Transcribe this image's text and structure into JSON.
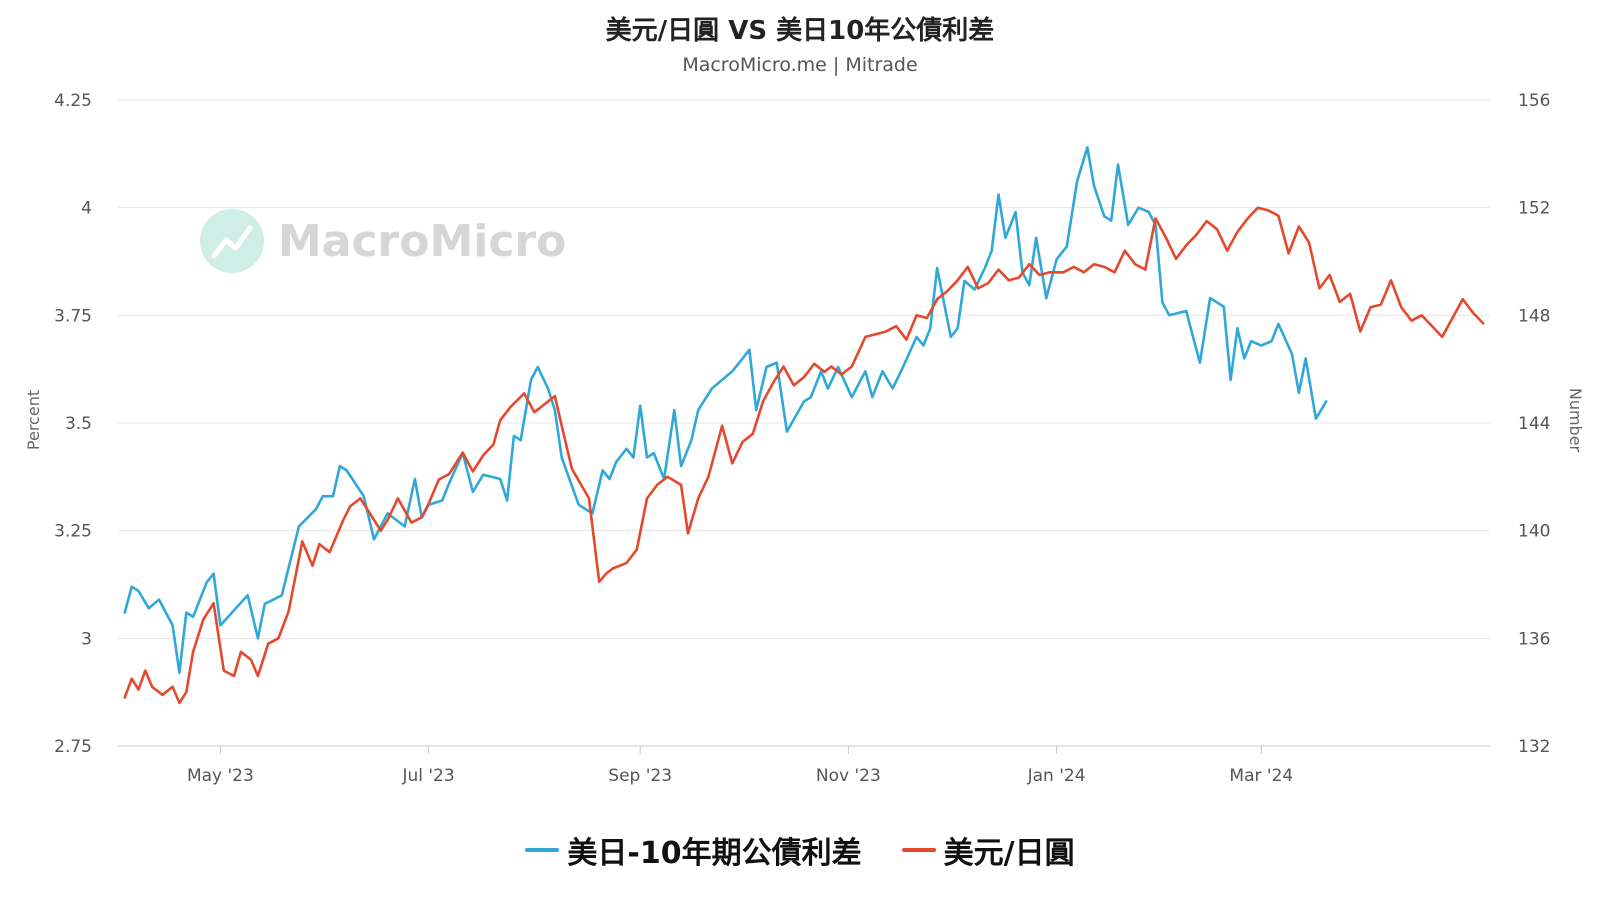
{
  "chart_data": {
    "type": "line",
    "title": "美元/日圓 VS 美日10年公債利差",
    "subtitle": "MacroMicro.me | Mitrade",
    "watermark": "MacroMicro",
    "x_ticks": [
      "May '23",
      "Jul '23",
      "Sep '23",
      "Nov '23",
      "Jan '24",
      "Mar '24"
    ],
    "y_left": {
      "label": "Percent",
      "ticks": [
        "4.25",
        "4",
        "3.75",
        "3.5",
        "3.25",
        "3",
        "2.75"
      ],
      "range": [
        2.75,
        4.25
      ]
    },
    "y_right": {
      "label": "Number",
      "ticks": [
        "156",
        "152",
        "148",
        "144",
        "140",
        "136",
        "132"
      ],
      "range": [
        132,
        156
      ]
    },
    "grid": true,
    "legend_position": "bottom",
    "series": [
      {
        "name": "美日-10年期公債利差",
        "axis": "left",
        "color": "#2fa8d8",
        "points": [
          [
            "2023-04-03",
            3.06
          ],
          [
            "2023-04-05",
            3.12
          ],
          [
            "2023-04-07",
            3.11
          ],
          [
            "2023-04-10",
            3.07
          ],
          [
            "2023-04-13",
            3.09
          ],
          [
            "2023-04-17",
            3.03
          ],
          [
            "2023-04-19",
            2.92
          ],
          [
            "2023-04-21",
            3.06
          ],
          [
            "2023-04-23",
            3.05
          ],
          [
            "2023-04-27",
            3.13
          ],
          [
            "2023-04-29",
            3.15
          ],
          [
            "2023-05-01",
            3.03
          ],
          [
            "2023-05-09",
            3.1
          ],
          [
            "2023-05-12",
            3.0
          ],
          [
            "2023-05-14",
            3.08
          ],
          [
            "2023-05-19",
            3.1
          ],
          [
            "2023-05-24",
            3.26
          ],
          [
            "2023-05-29",
            3.3
          ],
          [
            "2023-05-31",
            3.33
          ],
          [
            "2023-06-03",
            3.33
          ],
          [
            "2023-06-05",
            3.4
          ],
          [
            "2023-06-07",
            3.39
          ],
          [
            "2023-06-12",
            3.33
          ],
          [
            "2023-06-15",
            3.23
          ],
          [
            "2023-06-19",
            3.29
          ],
          [
            "2023-06-24",
            3.26
          ],
          [
            "2023-06-27",
            3.37
          ],
          [
            "2023-06-29",
            3.28
          ],
          [
            "2023-07-01",
            3.31
          ],
          [
            "2023-07-05",
            3.32
          ],
          [
            "2023-07-07",
            3.36
          ],
          [
            "2023-07-11",
            3.43
          ],
          [
            "2023-07-14",
            3.34
          ],
          [
            "2023-07-17",
            3.38
          ],
          [
            "2023-07-22",
            3.37
          ],
          [
            "2023-07-24",
            3.32
          ],
          [
            "2023-07-26",
            3.47
          ],
          [
            "2023-07-28",
            3.46
          ],
          [
            "2023-07-31",
            3.6
          ],
          [
            "2023-08-02",
            3.63
          ],
          [
            "2023-08-05",
            3.58
          ],
          [
            "2023-08-07",
            3.53
          ],
          [
            "2023-08-09",
            3.42
          ],
          [
            "2023-08-14",
            3.31
          ],
          [
            "2023-08-18",
            3.29
          ],
          [
            "2023-08-21",
            3.39
          ],
          [
            "2023-08-23",
            3.37
          ],
          [
            "2023-08-25",
            3.41
          ],
          [
            "2023-08-28",
            3.44
          ],
          [
            "2023-08-30",
            3.42
          ],
          [
            "2023-09-01",
            3.54
          ],
          [
            "2023-09-03",
            3.42
          ],
          [
            "2023-09-05",
            3.43
          ],
          [
            "2023-09-08",
            3.37
          ],
          [
            "2023-09-11",
            3.53
          ],
          [
            "2023-09-13",
            3.4
          ],
          [
            "2023-09-16",
            3.46
          ],
          [
            "2023-09-18",
            3.53
          ],
          [
            "2023-09-22",
            3.58
          ],
          [
            "2023-09-25",
            3.6
          ],
          [
            "2023-09-28",
            3.62
          ],
          [
            "2023-10-01",
            3.65
          ],
          [
            "2023-10-03",
            3.67
          ],
          [
            "2023-10-05",
            3.53
          ],
          [
            "2023-10-08",
            3.63
          ],
          [
            "2023-10-11",
            3.64
          ],
          [
            "2023-10-14",
            3.48
          ],
          [
            "2023-10-19",
            3.55
          ],
          [
            "2023-10-21",
            3.56
          ],
          [
            "2023-10-24",
            3.62
          ],
          [
            "2023-10-26",
            3.58
          ],
          [
            "2023-10-29",
            3.63
          ],
          [
            "2023-11-02",
            3.56
          ],
          [
            "2023-11-04",
            3.59
          ],
          [
            "2023-11-06",
            3.62
          ],
          [
            "2023-11-08",
            3.56
          ],
          [
            "2023-11-11",
            3.62
          ],
          [
            "2023-11-14",
            3.58
          ],
          [
            "2023-11-17",
            3.63
          ],
          [
            "2023-11-21",
            3.7
          ],
          [
            "2023-11-23",
            3.68
          ],
          [
            "2023-11-25",
            3.72
          ],
          [
            "2023-11-27",
            3.86
          ],
          [
            "2023-11-29",
            3.78
          ],
          [
            "2023-12-01",
            3.7
          ],
          [
            "2023-12-03",
            3.72
          ],
          [
            "2023-12-05",
            3.83
          ],
          [
            "2023-12-08",
            3.81
          ],
          [
            "2023-12-11",
            3.86
          ],
          [
            "2023-12-13",
            3.9
          ],
          [
            "2023-12-15",
            4.03
          ],
          [
            "2023-12-17",
            3.93
          ],
          [
            "2023-12-20",
            3.99
          ],
          [
            "2023-12-22",
            3.85
          ],
          [
            "2023-12-24",
            3.82
          ],
          [
            "2023-12-26",
            3.93
          ],
          [
            "2023-12-29",
            3.79
          ],
          [
            "2024-01-01",
            3.88
          ],
          [
            "2024-01-04",
            3.91
          ],
          [
            "2024-01-07",
            4.06
          ],
          [
            "2024-01-10",
            4.14
          ],
          [
            "2024-01-12",
            4.05
          ],
          [
            "2024-01-15",
            3.98
          ],
          [
            "2024-01-17",
            3.97
          ],
          [
            "2024-01-19",
            4.1
          ],
          [
            "2024-01-22",
            3.96
          ],
          [
            "2024-01-25",
            4.0
          ],
          [
            "2024-01-28",
            3.99
          ],
          [
            "2024-01-30",
            3.96
          ],
          [
            "2024-02-01",
            3.78
          ],
          [
            "2024-02-03",
            3.75
          ],
          [
            "2024-02-08",
            3.76
          ],
          [
            "2024-02-12",
            3.64
          ],
          [
            "2024-02-15",
            3.79
          ],
          [
            "2024-02-17",
            3.78
          ],
          [
            "2024-02-19",
            3.77
          ],
          [
            "2024-02-21",
            3.6
          ],
          [
            "2024-02-23",
            3.72
          ],
          [
            "2024-02-25",
            3.65
          ],
          [
            "2024-02-27",
            3.69
          ],
          [
            "2024-03-01",
            3.68
          ],
          [
            "2024-03-04",
            3.69
          ],
          [
            "2024-03-06",
            3.73
          ],
          [
            "2024-03-10",
            3.66
          ],
          [
            "2024-03-12",
            3.57
          ],
          [
            "2024-03-14",
            3.65
          ],
          [
            "2024-03-17",
            3.51
          ],
          [
            "2024-03-20",
            3.55
          ]
        ]
      },
      {
        "name": "美元/日圓",
        "axis": "right",
        "color": "#e5492d",
        "points": [
          [
            "2023-04-03",
            133.8
          ],
          [
            "2023-04-05",
            134.5
          ],
          [
            "2023-04-07",
            134.1
          ],
          [
            "2023-04-09",
            134.8
          ],
          [
            "2023-04-11",
            134.2
          ],
          [
            "2023-04-14",
            133.9
          ],
          [
            "2023-04-17",
            134.2
          ],
          [
            "2023-04-19",
            133.6
          ],
          [
            "2023-04-21",
            134.0
          ],
          [
            "2023-04-23",
            135.5
          ],
          [
            "2023-04-26",
            136.7
          ],
          [
            "2023-04-29",
            137.3
          ],
          [
            "2023-05-02",
            134.8
          ],
          [
            "2023-05-05",
            134.6
          ],
          [
            "2023-05-07",
            135.5
          ],
          [
            "2023-05-10",
            135.2
          ],
          [
            "2023-05-12",
            134.6
          ],
          [
            "2023-05-15",
            135.8
          ],
          [
            "2023-05-18",
            136.0
          ],
          [
            "2023-05-21",
            137.0
          ],
          [
            "2023-05-25",
            139.6
          ],
          [
            "2023-05-28",
            138.7
          ],
          [
            "2023-05-30",
            139.5
          ],
          [
            "2023-06-02",
            139.2
          ],
          [
            "2023-06-06",
            140.4
          ],
          [
            "2023-06-08",
            140.9
          ],
          [
            "2023-06-11",
            141.2
          ],
          [
            "2023-06-14",
            140.6
          ],
          [
            "2023-06-17",
            140.0
          ],
          [
            "2023-06-19",
            140.4
          ],
          [
            "2023-06-22",
            141.2
          ],
          [
            "2023-06-26",
            140.3
          ],
          [
            "2023-06-29",
            140.5
          ],
          [
            "2023-07-01",
            141.0
          ],
          [
            "2023-07-04",
            141.9
          ],
          [
            "2023-07-07",
            142.1
          ],
          [
            "2023-07-11",
            142.9
          ],
          [
            "2023-07-14",
            142.2
          ],
          [
            "2023-07-17",
            142.8
          ],
          [
            "2023-07-20",
            143.2
          ],
          [
            "2023-07-22",
            144.1
          ],
          [
            "2023-07-25",
            144.6
          ],
          [
            "2023-07-29",
            145.1
          ],
          [
            "2023-08-01",
            144.4
          ],
          [
            "2023-08-04",
            144.7
          ],
          [
            "2023-08-07",
            145.0
          ],
          [
            "2023-08-09",
            143.9
          ],
          [
            "2023-08-12",
            142.3
          ],
          [
            "2023-08-17",
            141.2
          ],
          [
            "2023-08-20",
            138.1
          ],
          [
            "2023-08-22",
            138.4
          ],
          [
            "2023-08-24",
            138.6
          ],
          [
            "2023-08-28",
            138.8
          ],
          [
            "2023-08-31",
            139.3
          ],
          [
            "2023-09-03",
            141.2
          ],
          [
            "2023-09-06",
            141.7
          ],
          [
            "2023-09-09",
            142.0
          ],
          [
            "2023-09-13",
            141.7
          ],
          [
            "2023-09-15",
            139.9
          ],
          [
            "2023-09-18",
            141.2
          ],
          [
            "2023-09-21",
            142.0
          ],
          [
            "2023-09-25",
            143.9
          ],
          [
            "2023-09-28",
            142.5
          ],
          [
            "2023-10-01",
            143.3
          ],
          [
            "2023-10-04",
            143.6
          ],
          [
            "2023-10-07",
            144.8
          ],
          [
            "2023-10-10",
            145.5
          ],
          [
            "2023-10-13",
            146.1
          ],
          [
            "2023-10-16",
            145.4
          ],
          [
            "2023-10-19",
            145.7
          ],
          [
            "2023-10-22",
            146.2
          ],
          [
            "2023-10-25",
            145.9
          ],
          [
            "2023-10-27",
            146.1
          ],
          [
            "2023-10-30",
            145.8
          ],
          [
            "2023-11-02",
            146.1
          ],
          [
            "2023-11-06",
            147.2
          ],
          [
            "2023-11-09",
            147.3
          ],
          [
            "2023-11-12",
            147.4
          ],
          [
            "2023-11-15",
            147.6
          ],
          [
            "2023-11-18",
            147.1
          ],
          [
            "2023-11-21",
            148.0
          ],
          [
            "2023-11-24",
            147.9
          ],
          [
            "2023-11-27",
            148.6
          ],
          [
            "2023-11-30",
            148.9
          ],
          [
            "2023-12-03",
            149.3
          ],
          [
            "2023-12-06",
            149.8
          ],
          [
            "2023-12-09",
            149.0
          ],
          [
            "2023-12-12",
            149.2
          ],
          [
            "2023-12-15",
            149.7
          ],
          [
            "2023-12-18",
            149.3
          ],
          [
            "2023-12-21",
            149.4
          ],
          [
            "2023-12-24",
            149.9
          ],
          [
            "2023-12-27",
            149.5
          ],
          [
            "2023-12-30",
            149.6
          ],
          [
            "2024-01-03",
            149.6
          ],
          [
            "2024-01-06",
            149.8
          ],
          [
            "2024-01-09",
            149.6
          ],
          [
            "2024-01-12",
            149.9
          ],
          [
            "2024-01-15",
            149.8
          ],
          [
            "2024-01-18",
            149.6
          ],
          [
            "2024-01-21",
            150.4
          ],
          [
            "2024-01-24",
            149.9
          ],
          [
            "2024-01-27",
            149.7
          ],
          [
            "2024-01-30",
            151.6
          ],
          [
            "2024-02-02",
            150.9
          ],
          [
            "2024-02-05",
            150.1
          ],
          [
            "2024-02-08",
            150.6
          ],
          [
            "2024-02-11",
            151.0
          ],
          [
            "2024-02-14",
            151.5
          ],
          [
            "2024-02-17",
            151.2
          ],
          [
            "2024-02-20",
            150.4
          ],
          [
            "2024-02-23",
            151.1
          ],
          [
            "2024-02-26",
            151.6
          ],
          [
            "2024-02-29",
            152.0
          ],
          [
            "2024-03-03",
            151.9
          ],
          [
            "2024-03-06",
            151.7
          ],
          [
            "2024-03-09",
            150.3
          ],
          [
            "2024-03-12",
            151.3
          ],
          [
            "2024-03-15",
            150.7
          ],
          [
            "2024-03-18",
            149.0
          ],
          [
            "2024-03-21",
            149.5
          ],
          [
            "2024-03-24",
            148.5
          ],
          [
            "2024-03-27",
            148.8
          ],
          [
            "2024-03-30",
            147.4
          ],
          [
            "2024-04-02",
            148.3
          ],
          [
            "2024-04-05",
            148.4
          ],
          [
            "2024-04-08",
            149.3
          ],
          [
            "2024-04-11",
            148.3
          ],
          [
            "2024-04-14",
            147.8
          ],
          [
            "2024-04-17",
            148.0
          ],
          [
            "2024-04-20",
            147.6
          ],
          [
            "2024-04-23",
            147.2
          ],
          [
            "2024-04-26",
            147.9
          ],
          [
            "2024-04-29",
            148.6
          ],
          [
            "2024-05-02",
            148.1
          ],
          [
            "2024-05-05",
            147.7
          ]
        ]
      }
    ]
  },
  "legend": [
    {
      "label": "美日-10年期公債利差",
      "color": "#2fa8d8"
    },
    {
      "label": "美元/日圓",
      "color": "#e5492d"
    }
  ]
}
